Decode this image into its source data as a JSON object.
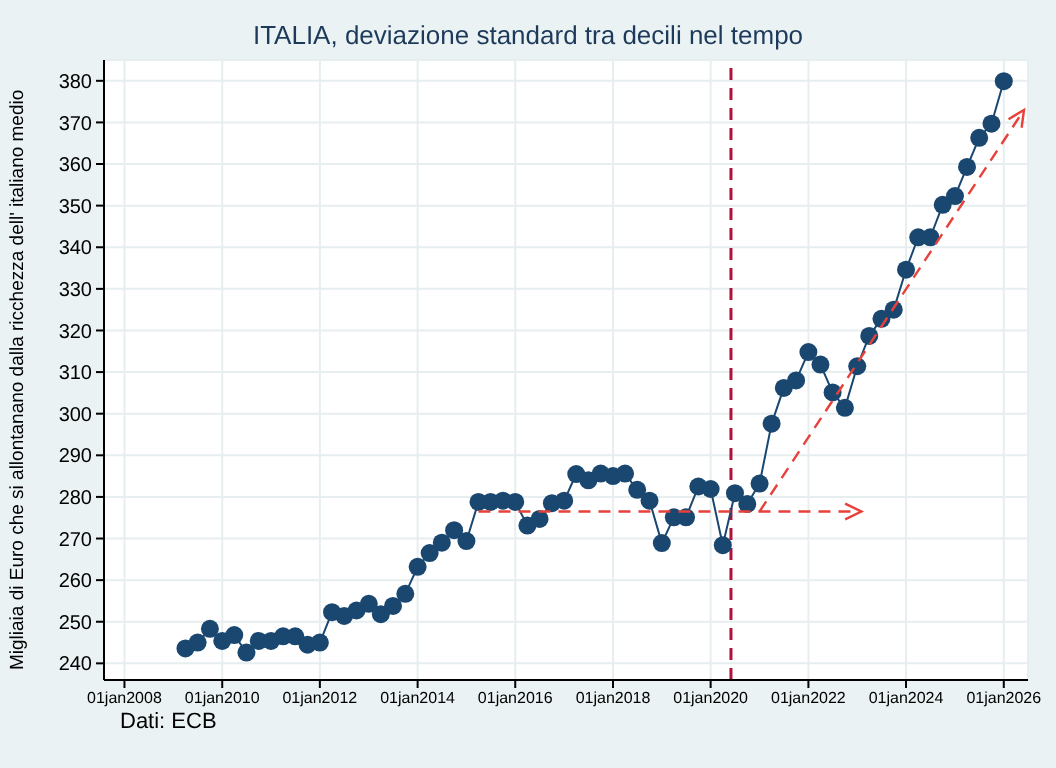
{
  "chart_data": {
    "type": "line",
    "title": "ITALIA, deviazione standard tra decili nel tempo",
    "ylabel": "Migliaia di Euro che si allontanano dalla ricchezza dell' italiano medio",
    "annotations": [
      "Dati: ECB"
    ],
    "x": [
      "2009-04",
      "2009-07",
      "2009-10",
      "2010-01",
      "2010-04",
      "2010-07",
      "2010-10",
      "2011-01",
      "2011-04",
      "2011-07",
      "2011-10",
      "2012-01",
      "2012-04",
      "2012-07",
      "2012-10",
      "2013-01",
      "2013-04",
      "2013-07",
      "2013-10",
      "2014-01",
      "2014-04",
      "2014-07",
      "2014-10",
      "2015-01",
      "2015-04",
      "2015-07",
      "2015-10",
      "2016-01",
      "2016-04",
      "2016-07",
      "2016-10",
      "2017-01",
      "2017-04",
      "2017-07",
      "2017-10",
      "2018-01",
      "2018-04",
      "2018-07",
      "2018-10",
      "2019-01",
      "2019-04",
      "2019-07",
      "2019-10",
      "2020-01",
      "2020-04",
      "2020-07",
      "2020-10",
      "2021-01",
      "2021-04",
      "2021-07",
      "2021-10",
      "2022-01",
      "2022-04",
      "2022-07",
      "2022-10",
      "2023-01",
      "2023-04",
      "2023-07",
      "2023-10",
      "2024-01",
      "2024-04",
      "2024-07",
      "2024-10",
      "2025-01",
      "2025-04",
      "2025-07",
      "2025-10",
      "2026-01"
    ],
    "series": [
      {
        "color": "#1a476f",
        "marker": "circle",
        "values": [
          243.6,
          245,
          248.3,
          245.4,
          246.8,
          242.6,
          245.4,
          245.4,
          246.5,
          246.5,
          244.5,
          245,
          252.3,
          251.4,
          252.7,
          254.3,
          251.8,
          253.8,
          256.7,
          263.2,
          266.5,
          269,
          272,
          269.4,
          278.8,
          278.8,
          279.1,
          278.8,
          273.1,
          274.7,
          278.5,
          279.1,
          285.5,
          284,
          285.6,
          285,
          285.6,
          281.7,
          279.1,
          268.9,
          275.1,
          275.1,
          282.5,
          281.9,
          268.4,
          280.9,
          278.3,
          283.2,
          297.6,
          306.2,
          308,
          314.8,
          311.8,
          305.1,
          301.4,
          311.4,
          318.7,
          322.8,
          325,
          334.6,
          342.4,
          342.4,
          350.2,
          352.3,
          359.3,
          366.3,
          369.7,
          379.9
        ]
      },
      {
        "type": "line",
        "color": "#e8403a",
        "line_style": "dashed",
        "marker": "none",
        "x": [
          "2015-04",
          "2023-02"
        ],
        "values": [
          276.5,
          276.5
        ]
      },
      {
        "type": "line",
        "color": "#e8403a",
        "line_style": "dashed",
        "marker": "none",
        "x": [
          "2021-01",
          "2026-06"
        ],
        "values": [
          276.5,
          373
        ]
      }
    ],
    "xlim": [
      "2007-08",
      "2026-07"
    ],
    "xticks": [
      {
        "value": "2008-01-01",
        "label": "01jan2008"
      },
      {
        "value": "2010-01-01",
        "label": "01jan2010"
      },
      {
        "value": "2012-01-01",
        "label": "01jan2012"
      },
      {
        "value": "2014-01-01",
        "label": "01jan2014"
      },
      {
        "value": "2016-01-01",
        "label": "01jan2016"
      },
      {
        "value": "2018-01-01",
        "label": "01jan2018"
      },
      {
        "value": "2020-01-01",
        "label": "01jan2020"
      },
      {
        "value": "2022-01-01",
        "label": "01jan2022"
      },
      {
        "value": "2024-01-01",
        "label": "01jan2024"
      },
      {
        "value": "2026-01-01",
        "label": "01jan2026"
      }
    ],
    "ylim": [
      236,
      385
    ],
    "yticks": [
      240,
      250,
      260,
      270,
      280,
      290,
      300,
      310,
      320,
      330,
      340,
      350,
      360,
      370,
      380
    ],
    "ref_lines": [
      {
        "axis": "x",
        "value": "2020-06",
        "color": "#b0103a",
        "line_style": "dashed"
      }
    ],
    "grid": true
  }
}
